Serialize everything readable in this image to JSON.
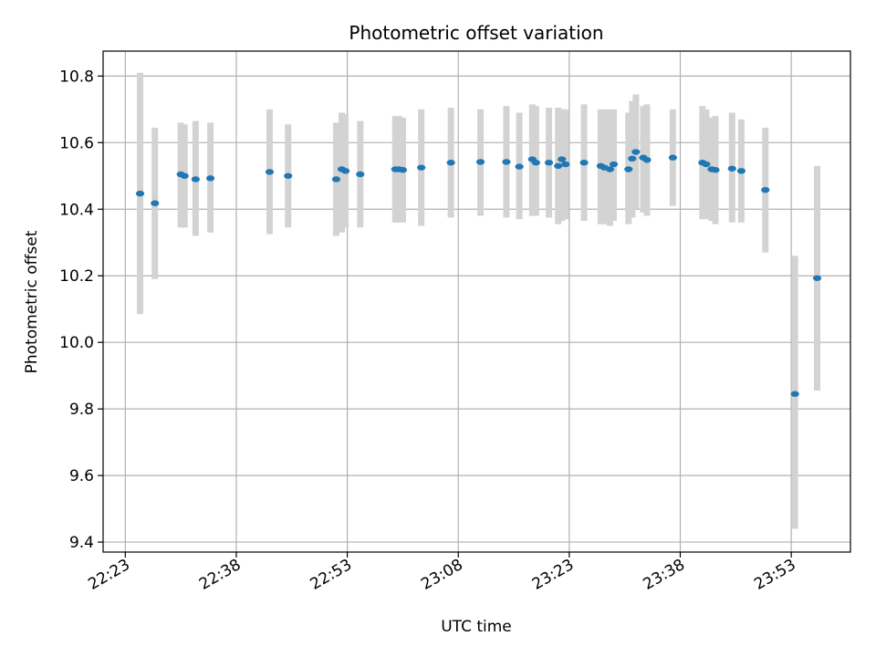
{
  "chart_data": {
    "type": "scatter",
    "title": "Photometric offset variation",
    "xlabel": "UTC time",
    "ylabel": "Photometric offset",
    "x_ticks": [
      "22:23",
      "22:38",
      "22:53",
      "23:08",
      "23:23",
      "23:38",
      "23:53"
    ],
    "y_ticks": [
      "9.4",
      "9.6",
      "9.8",
      "10.0",
      "10.2",
      "10.4",
      "10.6",
      "10.8"
    ],
    "xlim": [
      "22:20",
      "00:01"
    ],
    "ylim": [
      9.37,
      10.875
    ],
    "grid": true,
    "point_color": "#1f77b4",
    "errorbar_color": "#d3d3d3",
    "points": [
      {
        "t": "22:25",
        "y": 10.447,
        "lo": 10.085,
        "hi": 10.81
      },
      {
        "t": "22:27",
        "y": 10.418,
        "lo": 10.19,
        "hi": 10.645
      },
      {
        "t": "22:30:30",
        "y": 10.505,
        "lo": 10.345,
        "hi": 10.66
      },
      {
        "t": "22:31",
        "y": 10.5,
        "lo": 10.345,
        "hi": 10.655
      },
      {
        "t": "22:32:30",
        "y": 10.49,
        "lo": 10.32,
        "hi": 10.665
      },
      {
        "t": "22:34:30",
        "y": 10.493,
        "lo": 10.33,
        "hi": 10.66
      },
      {
        "t": "22:42:30",
        "y": 10.512,
        "lo": 10.325,
        "hi": 10.7
      },
      {
        "t": "22:45",
        "y": 10.5,
        "lo": 10.345,
        "hi": 10.655
      },
      {
        "t": "22:51:30",
        "y": 10.49,
        "lo": 10.32,
        "hi": 10.66
      },
      {
        "t": "22:52:15",
        "y": 10.52,
        "lo": 10.33,
        "hi": 10.69
      },
      {
        "t": "22:52:45",
        "y": 10.515,
        "lo": 10.345,
        "hi": 10.685
      },
      {
        "t": "22:54:45",
        "y": 10.505,
        "lo": 10.345,
        "hi": 10.665
      },
      {
        "t": "22:59:30",
        "y": 10.52,
        "lo": 10.36,
        "hi": 10.68
      },
      {
        "t": "23:00",
        "y": 10.52,
        "lo": 10.36,
        "hi": 10.68
      },
      {
        "t": "23:00:30",
        "y": 10.518,
        "lo": 10.36,
        "hi": 10.675
      },
      {
        "t": "23:03",
        "y": 10.525,
        "lo": 10.35,
        "hi": 10.7
      },
      {
        "t": "23:07",
        "y": 10.54,
        "lo": 10.375,
        "hi": 10.705
      },
      {
        "t": "23:11",
        "y": 10.542,
        "lo": 10.38,
        "hi": 10.7
      },
      {
        "t": "23:14:30",
        "y": 10.542,
        "lo": 10.375,
        "hi": 10.71
      },
      {
        "t": "23:16:15",
        "y": 10.528,
        "lo": 10.37,
        "hi": 10.69
      },
      {
        "t": "23:18",
        "y": 10.55,
        "lo": 10.38,
        "hi": 10.715
      },
      {
        "t": "23:18:30",
        "y": 10.54,
        "lo": 10.38,
        "hi": 10.71
      },
      {
        "t": "23:20:15",
        "y": 10.54,
        "lo": 10.375,
        "hi": 10.705
      },
      {
        "t": "23:21:30",
        "y": 10.53,
        "lo": 10.355,
        "hi": 10.705
      },
      {
        "t": "23:22",
        "y": 10.55,
        "lo": 10.365,
        "hi": 10.7
      },
      {
        "t": "23:22:30",
        "y": 10.535,
        "lo": 10.37,
        "hi": 10.7
      },
      {
        "t": "23:25",
        "y": 10.54,
        "lo": 10.365,
        "hi": 10.715
      },
      {
        "t": "23:27:15",
        "y": 10.53,
        "lo": 10.355,
        "hi": 10.7
      },
      {
        "t": "23:27:45",
        "y": 10.525,
        "lo": 10.355,
        "hi": 10.7
      },
      {
        "t": "23:28:30",
        "y": 10.52,
        "lo": 10.35,
        "hi": 10.7
      },
      {
        "t": "23:29",
        "y": 10.535,
        "lo": 10.365,
        "hi": 10.7
      },
      {
        "t": "23:31",
        "y": 10.52,
        "lo": 10.355,
        "hi": 10.69
      },
      {
        "t": "23:31:30",
        "y": 10.552,
        "lo": 10.375,
        "hi": 10.725
      },
      {
        "t": "23:32",
        "y": 10.572,
        "lo": 10.4,
        "hi": 10.745
      },
      {
        "t": "23:33",
        "y": 10.555,
        "lo": 10.39,
        "hi": 10.71
      },
      {
        "t": "23:33:30",
        "y": 10.548,
        "lo": 10.38,
        "hi": 10.715
      },
      {
        "t": "23:37",
        "y": 10.555,
        "lo": 10.41,
        "hi": 10.7
      },
      {
        "t": "23:41",
        "y": 10.54,
        "lo": 10.37,
        "hi": 10.71
      },
      {
        "t": "23:41:30",
        "y": 10.535,
        "lo": 10.37,
        "hi": 10.7
      },
      {
        "t": "23:42:15",
        "y": 10.52,
        "lo": 10.365,
        "hi": 10.675
      },
      {
        "t": "23:42:45",
        "y": 10.518,
        "lo": 10.355,
        "hi": 10.68
      },
      {
        "t": "23:45",
        "y": 10.522,
        "lo": 10.36,
        "hi": 10.69
      },
      {
        "t": "23:46:15",
        "y": 10.515,
        "lo": 10.36,
        "hi": 10.67
      },
      {
        "t": "23:49:30",
        "y": 10.458,
        "lo": 10.27,
        "hi": 10.645
      },
      {
        "t": "23:53:30",
        "y": 9.845,
        "lo": 9.44,
        "hi": 10.26
      },
      {
        "t": "23:56:30",
        "y": 10.193,
        "lo": 9.855,
        "hi": 10.53
      }
    ]
  }
}
